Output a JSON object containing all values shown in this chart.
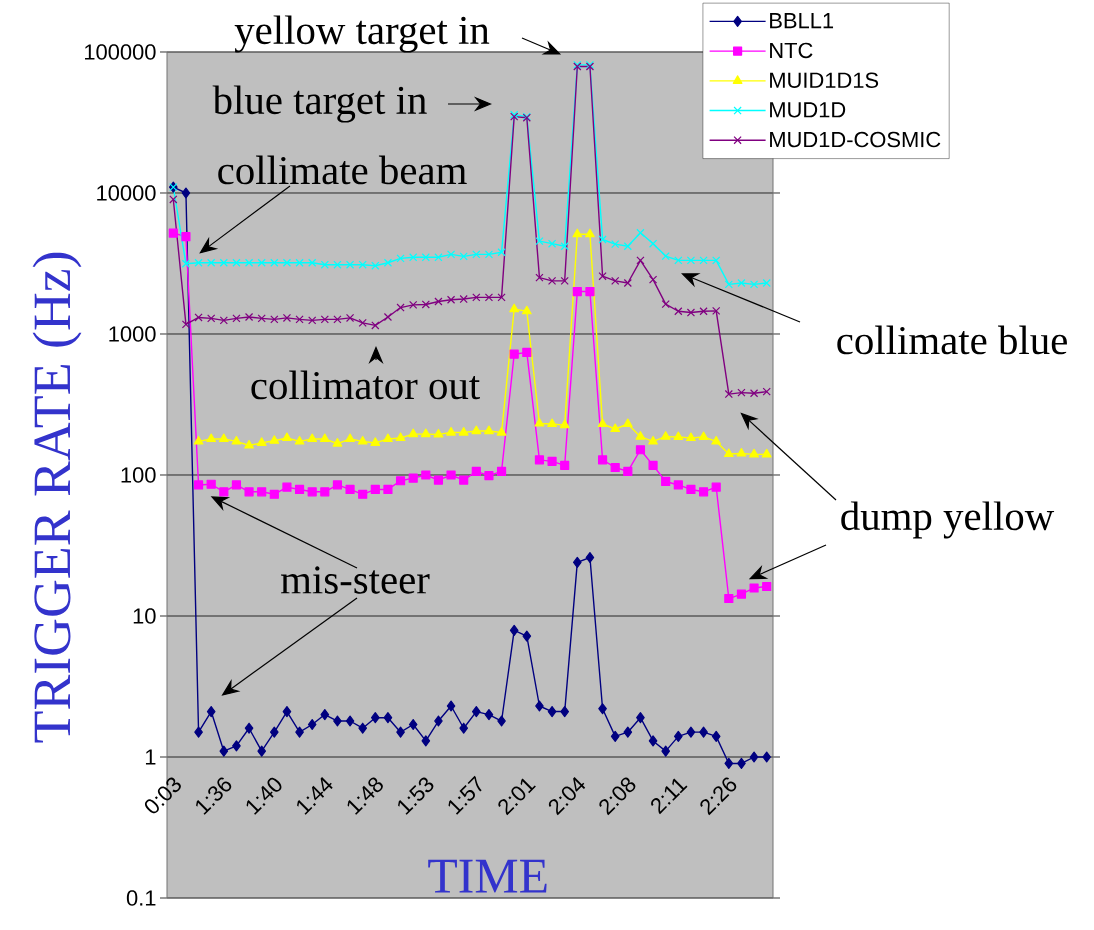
{
  "chart_data": {
    "type": "line",
    "xlabel": "TIME",
    "ylabel": "TRIGGER RATE (Hz)",
    "categories": [
      "0:03",
      null,
      null,
      null,
      "1:36",
      null,
      null,
      null,
      "1:40",
      null,
      null,
      null,
      "1:44",
      null,
      null,
      null,
      "1:48",
      null,
      null,
      null,
      "1:53",
      null,
      null,
      null,
      "1:57",
      null,
      null,
      null,
      "2:01",
      null,
      null,
      null,
      "2:04",
      null,
      null,
      null,
      "2:08",
      null,
      null,
      null,
      "2:11",
      null,
      null,
      null,
      "2:26",
      null,
      null,
      null
    ],
    "series": [
      {
        "name": "BBLL1",
        "color": "#000080",
        "marker": "diamond",
        "values": [
          11000,
          10000,
          1.5,
          2.1,
          1.1,
          1.2,
          1.6,
          1.1,
          1.5,
          2.1,
          1.5,
          1.7,
          2.0,
          1.8,
          1.8,
          1.6,
          1.9,
          1.9,
          1.5,
          1.7,
          1.3,
          1.8,
          2.3,
          1.6,
          2.1,
          2.0,
          1.8,
          7.9,
          7.2,
          2.3,
          2.1,
          2.1,
          24,
          26,
          2.2,
          1.4,
          1.5,
          1.9,
          1.3,
          1.1,
          1.4,
          1.5,
          1.5,
          1.4,
          0.9,
          0.9,
          1.0,
          1.0
        ]
      },
      {
        "name": "NTC",
        "color": "#ff00ff",
        "marker": "square",
        "values": [
          5200,
          4900,
          85,
          86,
          76,
          85,
          76,
          76,
          73,
          82,
          79,
          76,
          76,
          85,
          79,
          73,
          79,
          79,
          91,
          95,
          100,
          92,
          100,
          92,
          106,
          99,
          106,
          720,
          740,
          128,
          125,
          117,
          2000,
          2000,
          128,
          113,
          106,
          151,
          117,
          90,
          85,
          79,
          76,
          82,
          13.3,
          14.3,
          15.8,
          16.2
        ]
      },
      {
        "name": "MUID1D1S",
        "color": "#ffff00",
        "marker": "triangle",
        "values": [
          null,
          null,
          173,
          180,
          180,
          173,
          162,
          169,
          175,
          183,
          173,
          180,
          180,
          167,
          180,
          173,
          169,
          180,
          183,
          195,
          195,
          194,
          200,
          200,
          205,
          205,
          200,
          1500,
          1450,
          232,
          230,
          226,
          5100,
          5100,
          230,
          212,
          230,
          187,
          173,
          187,
          186,
          183,
          186,
          173,
          141,
          142,
          140,
          140
        ]
      },
      {
        "name": "MUD1D",
        "color": "#00ffff",
        "marker": "cross",
        "values": [
          11000,
          3150,
          3200,
          3200,
          3200,
          3200,
          3200,
          3200,
          3200,
          3200,
          3200,
          3200,
          3100,
          3100,
          3100,
          3100,
          3050,
          3200,
          3440,
          3500,
          3500,
          3500,
          3670,
          3550,
          3670,
          3670,
          3800,
          35900,
          34800,
          4560,
          4370,
          4190,
          81100,
          81100,
          4680,
          4340,
          4190,
          5220,
          4370,
          3570,
          3330,
          3330,
          3330,
          3330,
          2250,
          2300,
          2250,
          2300
        ]
      },
      {
        "name": "MUD1D-COSMIC",
        "color": "#800080",
        "marker": "cross",
        "values": [
          9000,
          1170,
          1310,
          1290,
          1250,
          1290,
          1320,
          1290,
          1270,
          1300,
          1270,
          1250,
          1270,
          1270,
          1300,
          1200,
          1150,
          1320,
          1540,
          1610,
          1620,
          1700,
          1750,
          1770,
          1820,
          1820,
          1820,
          34800,
          34200,
          2510,
          2380,
          2380,
          78900,
          78900,
          2570,
          2380,
          2300,
          3330,
          2430,
          1630,
          1450,
          1420,
          1450,
          1460,
          375,
          384,
          380,
          390
        ]
      }
    ],
    "log": true,
    "ylim": [
      0.1,
      100000
    ],
    "yticks": [
      0.1,
      1,
      10,
      100,
      1000,
      10000,
      100000
    ],
    "grid": "y",
    "legend": "top right",
    "line_style": "solid",
    "annotations": [
      "yellow target in",
      "blue target in",
      "collimate beam",
      "collimator out",
      "collimate blue",
      "dump yellow",
      "mis-steer"
    ]
  }
}
